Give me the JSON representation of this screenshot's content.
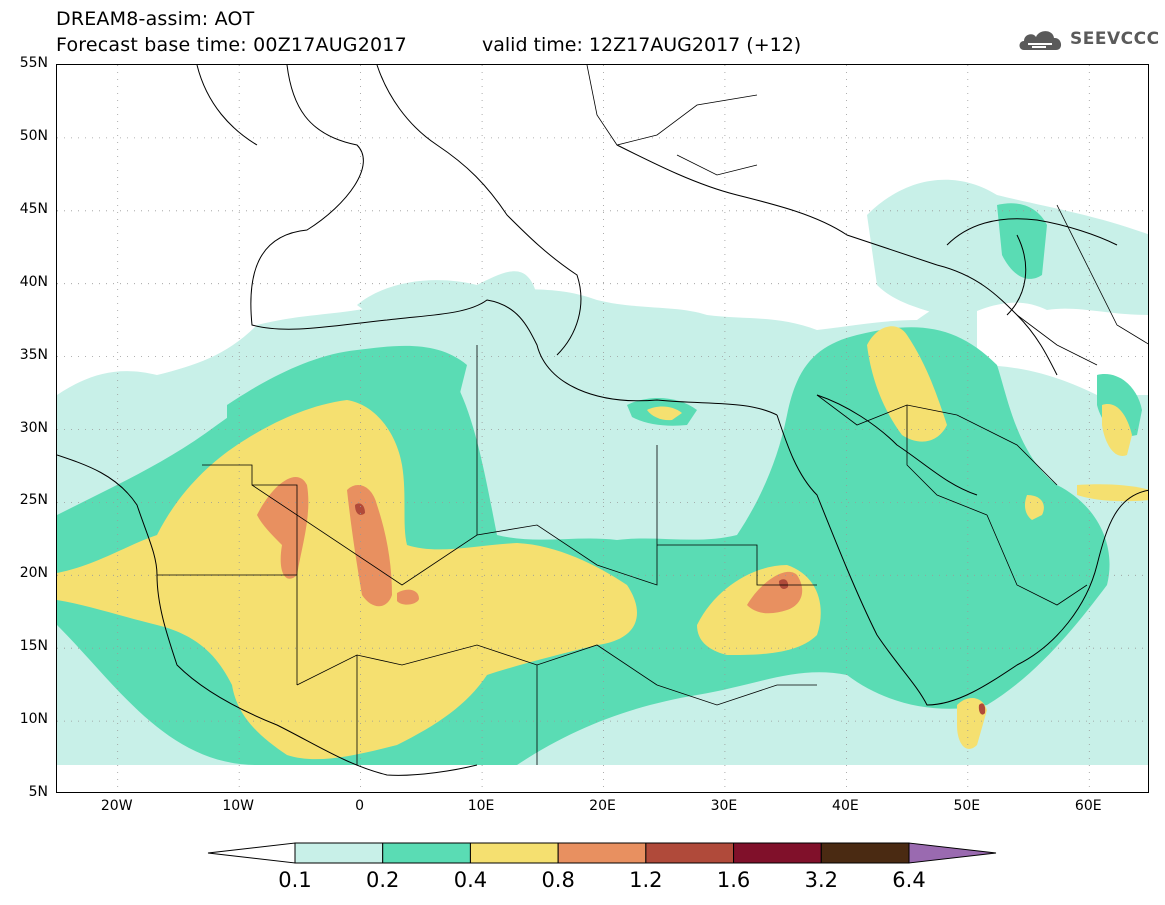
{
  "header": {
    "title": "DREAM8-assim: AOT",
    "forecast": "Forecast base time: 00Z17AUG2017",
    "valid": "valid time: 12Z17AUG2017 (+12)",
    "logo_text": "SEEVCCC"
  },
  "map": {
    "lon_range": [
      -25,
      65
    ],
    "lat_range": [
      5,
      55
    ],
    "lat_ticks": [
      {
        "lat": 55,
        "label": "55N"
      },
      {
        "lat": 50,
        "label": "50N"
      },
      {
        "lat": 45,
        "label": "45N"
      },
      {
        "lat": 40,
        "label": "40N"
      },
      {
        "lat": 35,
        "label": "35N"
      },
      {
        "lat": 30,
        "label": "30N"
      },
      {
        "lat": 25,
        "label": "25N"
      },
      {
        "lat": 20,
        "label": "20N"
      },
      {
        "lat": 15,
        "label": "15N"
      },
      {
        "lat": 10,
        "label": "10N"
      },
      {
        "lat": 5,
        "label": "5N"
      }
    ],
    "lon_ticks": [
      {
        "lon": -20,
        "label": "20W"
      },
      {
        "lon": -10,
        "label": "10W"
      },
      {
        "lon": 0,
        "label": "0"
      },
      {
        "lon": 10,
        "label": "10E"
      },
      {
        "lon": 20,
        "label": "20E"
      },
      {
        "lon": 30,
        "label": "30E"
      },
      {
        "lon": 40,
        "label": "40E"
      },
      {
        "lon": 50,
        "label": "50E"
      },
      {
        "lon": 60,
        "label": "60E"
      }
    ]
  },
  "legend": {
    "levels": [
      "0.1",
      "0.2",
      "0.4",
      "0.8",
      "1.2",
      "1.6",
      "3.2",
      "6.4"
    ],
    "colors": [
      "#ffffff",
      "#c8f0e8",
      "#5adcb4",
      "#f5e070",
      "#e89060",
      "#b04a3a",
      "#80102a",
      "#4a2a12",
      "#9a6ab0"
    ]
  }
}
